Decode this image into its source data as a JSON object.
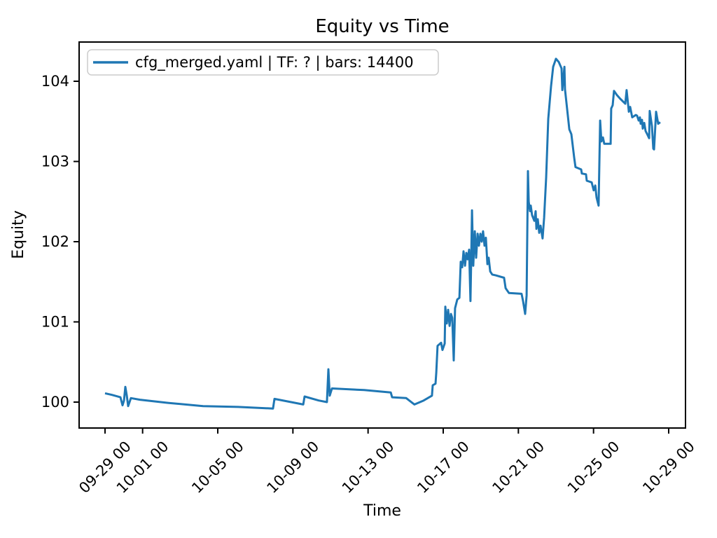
{
  "figure": {
    "background": "#ffffff",
    "text_color": "#000000",
    "spine_color": "#000000"
  },
  "chart_data": {
    "type": "line",
    "title": "Equity vs Time",
    "xlabel": "Time",
    "ylabel": "Equity",
    "grid": false,
    "legend": {
      "position": "upper left",
      "entries": [
        {
          "label": "cfg_merged.yaml | TF: ? | bars: 14400",
          "color": "#1f77b4"
        }
      ]
    },
    "x_unit": "days since 09-29 00:00",
    "x_ticks": [
      {
        "t": 0,
        "label": "09-29 00"
      },
      {
        "t": 2,
        "label": "10-01 00"
      },
      {
        "t": 6,
        "label": "10-05 00"
      },
      {
        "t": 10,
        "label": "10-09 00"
      },
      {
        "t": 14,
        "label": "10-13 00"
      },
      {
        "t": 18,
        "label": "10-17 00"
      },
      {
        "t": 22,
        "label": "10-21 00"
      },
      {
        "t": 26,
        "label": "10-25 00"
      },
      {
        "t": 30,
        "label": "10-29 00"
      }
    ],
    "y_ticks": [
      100,
      101,
      102,
      103,
      104
    ],
    "xlim_days": [
      -1.38,
      30.9
    ],
    "ylim": [
      99.68,
      104.49
    ],
    "series": [
      {
        "name": "cfg_merged.yaml | TF: ? | bars: 14400",
        "color": "#1f77b4",
        "points": [
          [
            0.0,
            100.11
          ],
          [
            0.37,
            100.09
          ],
          [
            0.82,
            100.06
          ],
          [
            0.93,
            99.96
          ],
          [
            1.01,
            100.02
          ],
          [
            1.08,
            100.19
          ],
          [
            1.16,
            100.08
          ],
          [
            1.23,
            99.95
          ],
          [
            1.38,
            100.05
          ],
          [
            1.86,
            100.03
          ],
          [
            3.35,
            99.99
          ],
          [
            5.22,
            99.95
          ],
          [
            7.08,
            99.94
          ],
          [
            8.94,
            99.92
          ],
          [
            9.02,
            100.04
          ],
          [
            10.55,
            99.97
          ],
          [
            10.62,
            100.07
          ],
          [
            11.37,
            100.02
          ],
          [
            11.81,
            100.0
          ],
          [
            11.89,
            100.41
          ],
          [
            11.96,
            100.08
          ],
          [
            12.08,
            100.17
          ],
          [
            13.79,
            100.15
          ],
          [
            15.21,
            100.12
          ],
          [
            15.28,
            100.06
          ],
          [
            16.03,
            100.05
          ],
          [
            16.47,
            99.97
          ],
          [
            16.96,
            100.02
          ],
          [
            17.4,
            100.08
          ],
          [
            17.44,
            100.21
          ],
          [
            17.59,
            100.23
          ],
          [
            17.63,
            100.37
          ],
          [
            17.7,
            100.7
          ],
          [
            17.89,
            100.74
          ],
          [
            17.96,
            100.65
          ],
          [
            18.08,
            100.73
          ],
          [
            18.11,
            101.19
          ],
          [
            18.19,
            100.98
          ],
          [
            18.26,
            101.15
          ],
          [
            18.34,
            100.95
          ],
          [
            18.41,
            101.1
          ],
          [
            18.48,
            101.05
          ],
          [
            18.56,
            100.52
          ],
          [
            18.63,
            101.17
          ],
          [
            18.75,
            101.28
          ],
          [
            18.86,
            101.3
          ],
          [
            18.93,
            101.75
          ],
          [
            19.01,
            101.68
          ],
          [
            19.08,
            101.88
          ],
          [
            19.16,
            101.7
          ],
          [
            19.23,
            101.86
          ],
          [
            19.3,
            101.78
          ],
          [
            19.38,
            101.9
          ],
          [
            19.45,
            101.26
          ],
          [
            19.49,
            101.8
          ],
          [
            19.53,
            102.39
          ],
          [
            19.6,
            101.7
          ],
          [
            19.68,
            102.13
          ],
          [
            19.75,
            101.8
          ],
          [
            19.83,
            102.1
          ],
          [
            19.9,
            101.95
          ],
          [
            19.98,
            102.1
          ],
          [
            20.05,
            102.0
          ],
          [
            20.12,
            102.13
          ],
          [
            20.2,
            101.95
          ],
          [
            20.27,
            102.05
          ],
          [
            20.35,
            101.72
          ],
          [
            20.42,
            101.8
          ],
          [
            20.5,
            101.63
          ],
          [
            20.61,
            101.59
          ],
          [
            20.8,
            101.58
          ],
          [
            21.24,
            101.55
          ],
          [
            21.32,
            101.42
          ],
          [
            21.5,
            101.36
          ],
          [
            22.17,
            101.35
          ],
          [
            22.25,
            101.26
          ],
          [
            22.36,
            101.1
          ],
          [
            22.44,
            101.33
          ],
          [
            22.51,
            102.88
          ],
          [
            22.55,
            102.5
          ],
          [
            22.62,
            102.38
          ],
          [
            22.66,
            102.45
          ],
          [
            22.73,
            102.33
          ],
          [
            22.85,
            102.26
          ],
          [
            22.92,
            102.38
          ],
          [
            22.96,
            102.16
          ],
          [
            23.03,
            102.28
          ],
          [
            23.11,
            102.11
          ],
          [
            23.18,
            102.2
          ],
          [
            23.29,
            102.04
          ],
          [
            23.37,
            102.3
          ],
          [
            23.48,
            102.8
          ],
          [
            23.59,
            103.53
          ],
          [
            23.74,
            103.94
          ],
          [
            23.85,
            104.18
          ],
          [
            24.0,
            104.28
          ],
          [
            24.15,
            104.24
          ],
          [
            24.3,
            104.16
          ],
          [
            24.34,
            103.89
          ],
          [
            24.45,
            104.18
          ],
          [
            24.48,
            103.9
          ],
          [
            24.71,
            103.4
          ],
          [
            24.82,
            103.34
          ],
          [
            24.97,
            103.05
          ],
          [
            25.04,
            102.93
          ],
          [
            25.34,
            102.9
          ],
          [
            25.38,
            102.85
          ],
          [
            25.6,
            102.84
          ],
          [
            25.64,
            102.76
          ],
          [
            25.9,
            102.74
          ],
          [
            26.01,
            102.64
          ],
          [
            26.09,
            102.7
          ],
          [
            26.16,
            102.55
          ],
          [
            26.27,
            102.45
          ],
          [
            26.35,
            103.51
          ],
          [
            26.42,
            103.25
          ],
          [
            26.5,
            103.3
          ],
          [
            26.57,
            103.22
          ],
          [
            26.91,
            103.22
          ],
          [
            26.94,
            103.66
          ],
          [
            27.02,
            103.7
          ],
          [
            27.09,
            103.88
          ],
          [
            27.24,
            103.83
          ],
          [
            27.43,
            103.78
          ],
          [
            27.69,
            103.72
          ],
          [
            27.76,
            103.89
          ],
          [
            27.88,
            103.62
          ],
          [
            27.95,
            103.68
          ],
          [
            28.06,
            103.55
          ],
          [
            28.25,
            103.58
          ],
          [
            28.32,
            103.57
          ],
          [
            28.4,
            103.51
          ],
          [
            28.47,
            103.55
          ],
          [
            28.51,
            103.47
          ],
          [
            28.58,
            103.52
          ],
          [
            28.62,
            103.41
          ],
          [
            28.7,
            103.48
          ],
          [
            28.77,
            103.38
          ],
          [
            28.88,
            103.33
          ],
          [
            28.96,
            103.29
          ],
          [
            28.99,
            103.63
          ],
          [
            29.11,
            103.44
          ],
          [
            29.18,
            103.16
          ],
          [
            29.22,
            103.15
          ],
          [
            29.33,
            103.62
          ],
          [
            29.44,
            103.47
          ],
          [
            29.55,
            103.49
          ]
        ]
      }
    ]
  }
}
